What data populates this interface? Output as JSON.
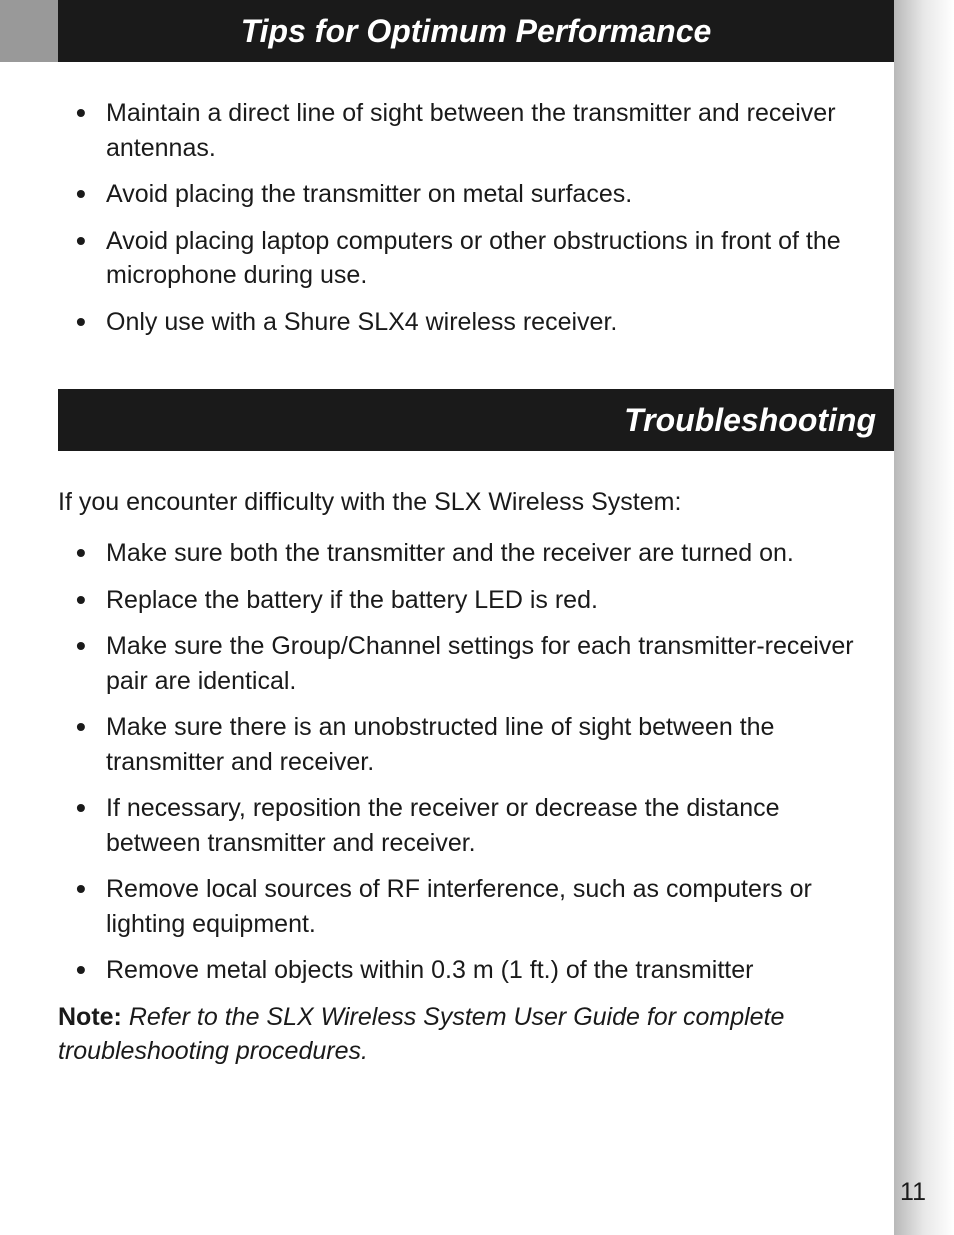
{
  "section1": {
    "title": "Tips for Optimum Performance",
    "bullets": [
      "Maintain a direct line of sight between the transmitter and receiver antennas.",
      "Avoid placing the transmitter on metal surfaces.",
      "Avoid placing laptop computers or other obstructions in front of the microphone during use.",
      "Only use with a Shure SLX4 wireless receiver."
    ]
  },
  "section2": {
    "title": "Troubleshooting",
    "intro": "If you encounter difficulty with the SLX Wireless System:",
    "bullets": [
      "Make sure both the transmitter and the receiver are turned on.",
      "Replace the battery if the battery LED is red.",
      "Make sure the Group/Channel settings for each transmitter-receiver pair are identical.",
      "Make sure there is an unobstructed line of sight between the transmitter and receiver.",
      "If necessary, reposition the receiver or decrease the distance between transmitter and receiver.",
      "Remove local sources of RF interference, such as computers or lighting equipment.",
      "Remove metal objects within 0.3 m (1 ft.) of the transmitter"
    ],
    "note_label": "Note:",
    "note_body": "Refer to the SLX Wireless System User Guide for complete troubleshooting procedures."
  },
  "page_number": "11",
  "colors": {
    "header_bg": "#1a1a1a",
    "header_text": "#ffffff",
    "tab_gray": "#999999",
    "body_text": "#1a1a1a",
    "page_bg": "#ffffff"
  },
  "typography": {
    "title_fontsize": 32,
    "body_fontsize": 25,
    "font_family": "Arial"
  }
}
